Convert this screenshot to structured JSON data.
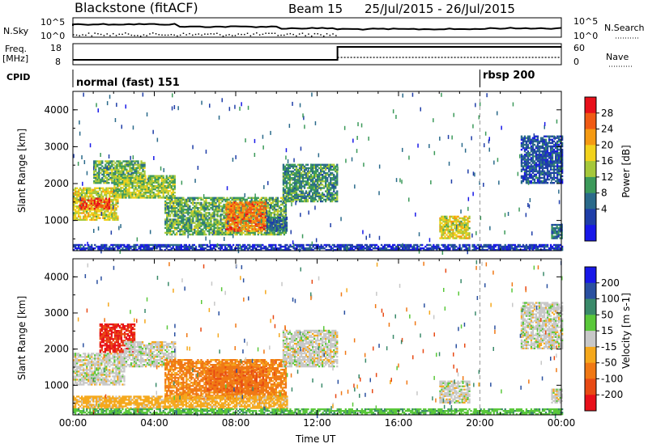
{
  "header": {
    "station": "Blackstone (fitACF)",
    "beam": "Beam 15",
    "date_range": "25/Jul/2015 - 26/Jul/2015"
  },
  "noise_panel": {
    "left_label": "N.Sky",
    "left_ticks": [
      "10^5",
      "10^0"
    ],
    "right_label": "N.Search",
    "right_ticks": [
      "10^5",
      "10^0"
    ]
  },
  "freq_panel": {
    "left_label_top": "Freq.",
    "left_label_unit": "[MHz]",
    "left_ticks": [
      "18",
      "8"
    ],
    "right_label": "Nave",
    "right_ticks": [
      "60",
      "0"
    ]
  },
  "cpid_panel": {
    "label": "CPID",
    "modes": [
      {
        "name": "normal (fast) 151",
        "start_hour": 0
      },
      {
        "name": "rbsp 200",
        "start_hour": 20
      }
    ]
  },
  "colorbars": {
    "power": {
      "label": "Power [dB]",
      "ticks": [
        "28",
        "24",
        "20",
        "16",
        "12",
        "8",
        "4"
      ],
      "colors": [
        "#e8101a",
        "#f05a14",
        "#f59a12",
        "#f2d21c",
        "#a6c83a",
        "#3c9a5a",
        "#2a6a8a",
        "#1f3ea8",
        "#1818e8"
      ]
    },
    "velocity": {
      "label": "Velocity [m s-1]",
      "ticks": [
        "200",
        "100",
        "50",
        "15",
        "-15",
        "-50",
        "-100",
        "-200"
      ],
      "colors": [
        "#1818e8",
        "#2a50a0",
        "#3a8a6a",
        "#5ac83a",
        "#c8c8c8",
        "#f5a81c",
        "#f07814",
        "#e84a14",
        "#e8101a"
      ]
    }
  },
  "chart_data": [
    {
      "type": "heatmap",
      "title": "Power",
      "xlabel": "Time UT",
      "ylabel": "Slant Range [km]",
      "x_ticks": [
        "00:00",
        "04:00",
        "08:00",
        "12:00",
        "16:00",
        "20:00",
        "00:00"
      ],
      "xlim": [
        0,
        24
      ],
      "y_ticks": [
        "1000",
        "2000",
        "3000",
        "4000"
      ],
      "ylim": [
        180,
        4500
      ],
      "colorbar_label": "Power [dB]",
      "colorbar_range": [
        2,
        30
      ],
      "regions": [
        {
          "t0": 0.0,
          "t1": 2.2,
          "r0": 1000,
          "r1": 1900,
          "value": 18
        },
        {
          "t0": 0.3,
          "t1": 1.8,
          "r0": 1300,
          "r1": 1600,
          "value": 26
        },
        {
          "t0": 1.0,
          "t1": 3.5,
          "r0": 2000,
          "r1": 2600,
          "value": 14
        },
        {
          "t0": 2.0,
          "t1": 5.0,
          "r0": 1600,
          "r1": 2200,
          "value": 16
        },
        {
          "t0": 4.5,
          "t1": 10.5,
          "r0": 600,
          "r1": 1600,
          "value": 14
        },
        {
          "t0": 7.5,
          "t1": 9.5,
          "r0": 700,
          "r1": 1500,
          "value": 24
        },
        {
          "t0": 9.5,
          "t1": 10.5,
          "r0": 700,
          "r1": 1100,
          "value": 10
        },
        {
          "t0": 10.3,
          "t1": 13.0,
          "r0": 1500,
          "r1": 2500,
          "value": 12
        },
        {
          "t0": 18.0,
          "t1": 19.5,
          "r0": 500,
          "r1": 1100,
          "value": 18
        },
        {
          "t0": 22.0,
          "t1": 24.0,
          "r0": 2000,
          "r1": 3300,
          "value": 8
        },
        {
          "t0": 23.5,
          "t1": 24.0,
          "r0": 500,
          "r1": 900,
          "value": 10
        },
        {
          "t0": 0.0,
          "t1": 24.0,
          "r0": 180,
          "r1": 350,
          "value": 6
        }
      ]
    },
    {
      "type": "heatmap",
      "title": "Velocity",
      "xlabel": "Time UT",
      "ylabel": "Slant Range [km]",
      "x_ticks": [
        "00:00",
        "04:00",
        "08:00",
        "12:00",
        "16:00",
        "20:00",
        "00:00"
      ],
      "xlim": [
        0,
        24
      ],
      "y_ticks": [
        "1000",
        "2000",
        "3000",
        "4000"
      ],
      "ylim": [
        180,
        4500
      ],
      "colorbar_label": "Velocity [m s-1]",
      "colorbar_range": [
        -250,
        250
      ],
      "regions": [
        {
          "t0": 0.0,
          "t1": 2.5,
          "r0": 1000,
          "r1": 1900,
          "value": 0
        },
        {
          "t0": 1.3,
          "t1": 3.0,
          "r0": 1900,
          "r1": 2700,
          "value": -200
        },
        {
          "t0": 2.5,
          "t1": 5.0,
          "r0": 1500,
          "r1": 2200,
          "value": 0
        },
        {
          "t0": 4.5,
          "t1": 10.5,
          "r0": 600,
          "r1": 1700,
          "value": -60
        },
        {
          "t0": 6.5,
          "t1": 9.5,
          "r0": 800,
          "r1": 1500,
          "value": -90
        },
        {
          "t0": 0.0,
          "t1": 10.5,
          "r0": 350,
          "r1": 700,
          "value": -30
        },
        {
          "t0": 10.3,
          "t1": 13.0,
          "r0": 1500,
          "r1": 2500,
          "value": 0
        },
        {
          "t0": 18.0,
          "t1": 19.5,
          "r0": 500,
          "r1": 1100,
          "value": 0
        },
        {
          "t0": 22.0,
          "t1": 24.0,
          "r0": 2000,
          "r1": 3300,
          "value": 0
        },
        {
          "t0": 23.5,
          "t1": 24.0,
          "r0": 500,
          "r1": 900,
          "value": 0
        },
        {
          "t0": 0.0,
          "t1": 24.0,
          "r0": 180,
          "r1": 350,
          "value": 40
        }
      ]
    }
  ]
}
